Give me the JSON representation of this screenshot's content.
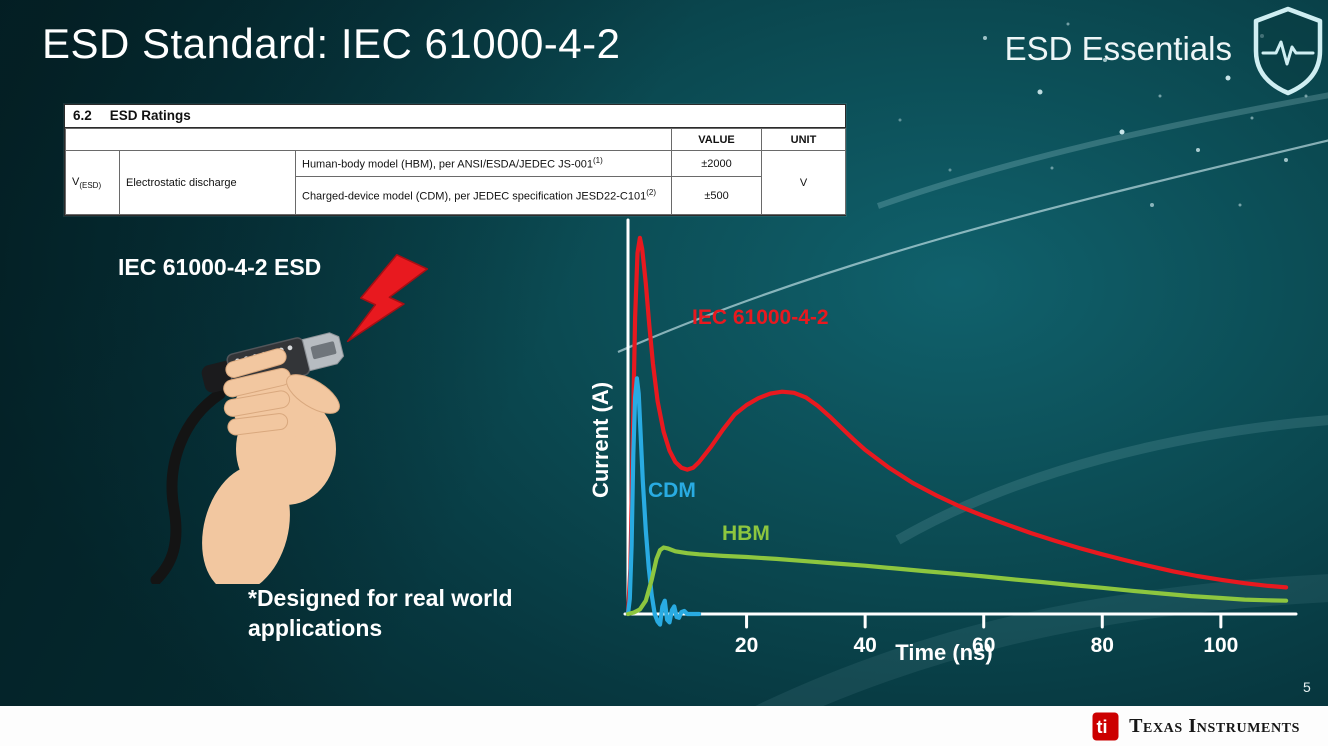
{
  "slide": {
    "title": "ESD Standard: IEC 61000-4-2",
    "brand": "ESD Essentials",
    "page_number": "5"
  },
  "ratings_table": {
    "section_number": "6.2",
    "section_title": "ESD Ratings",
    "headers": {
      "value": "VALUE",
      "unit": "UNIT"
    },
    "param": {
      "symbol": "V",
      "subscript": "(ESD)",
      "name": "Electrostatic discharge"
    },
    "rows": [
      {
        "description": "Human-body model (HBM), per ANSI/ESDA/JEDEC JS-001",
        "footnote": "(1)",
        "value": "±2000"
      },
      {
        "description": "Charged-device model (CDM), per JEDEC specification JESD22-C101",
        "footnote": "(2)",
        "value": "±500"
      }
    ],
    "unit": "V"
  },
  "illustration": {
    "caption": "IEC 61000-4-2 ESD",
    "note_line1": "*Designed for real world",
    "note_line2": "applications"
  },
  "footer": {
    "brand": "Texas Instruments"
  },
  "chart_data": {
    "type": "line",
    "title": "",
    "xlabel": "Time (ns)",
    "ylabel": "Current (A)",
    "xlim": [
      0,
      112
    ],
    "x_ticks": [
      20,
      40,
      60,
      80,
      100
    ],
    "y_axis": "unlabeled; current normalized so IEC 61000-4-2 first peak = 1.0",
    "grid": false,
    "legend": "inline colored labels near each curve",
    "series": [
      {
        "name": "IEC 61000-4-2",
        "color": "#e8191f",
        "points": [
          [
            0,
            0
          ],
          [
            0.4,
            0.12
          ],
          [
            0.8,
            0.45
          ],
          [
            1.2,
            0.78
          ],
          [
            1.6,
            0.95
          ],
          [
            2,
            0.99
          ],
          [
            2.4,
            0.96
          ],
          [
            3,
            0.87
          ],
          [
            3.6,
            0.76
          ],
          [
            4.2,
            0.66
          ],
          [
            5,
            0.56
          ],
          [
            6,
            0.48
          ],
          [
            7,
            0.43
          ],
          [
            8,
            0.4
          ],
          [
            9,
            0.385
          ],
          [
            10,
            0.38
          ],
          [
            11,
            0.385
          ],
          [
            12,
            0.4
          ],
          [
            14,
            0.44
          ],
          [
            16,
            0.485
          ],
          [
            18,
            0.525
          ],
          [
            20,
            0.55
          ],
          [
            22,
            0.568
          ],
          [
            24,
            0.58
          ],
          [
            26,
            0.585
          ],
          [
            28,
            0.582
          ],
          [
            30,
            0.57
          ],
          [
            32,
            0.548
          ],
          [
            34,
            0.52
          ],
          [
            36,
            0.49
          ],
          [
            38,
            0.46
          ],
          [
            40,
            0.432
          ],
          [
            44,
            0.385
          ],
          [
            48,
            0.345
          ],
          [
            52,
            0.312
          ],
          [
            56,
            0.283
          ],
          [
            60,
            0.258
          ],
          [
            64,
            0.235
          ],
          [
            68,
            0.213
          ],
          [
            72,
            0.193
          ],
          [
            76,
            0.174
          ],
          [
            80,
            0.157
          ],
          [
            84,
            0.141
          ],
          [
            88,
            0.126
          ],
          [
            92,
            0.112
          ],
          [
            96,
            0.1
          ],
          [
            100,
            0.09
          ],
          [
            104,
            0.081
          ],
          [
            108,
            0.074
          ],
          [
            111,
            0.07
          ]
        ]
      },
      {
        "name": "CDM",
        "color": "#29abe2",
        "points": [
          [
            0,
            0
          ],
          [
            0.3,
            0.04
          ],
          [
            0.6,
            0.18
          ],
          [
            0.9,
            0.42
          ],
          [
            1.2,
            0.57
          ],
          [
            1.5,
            0.62
          ],
          [
            1.8,
            0.58
          ],
          [
            2.1,
            0.48
          ],
          [
            2.5,
            0.35
          ],
          [
            3,
            0.22
          ],
          [
            3.5,
            0.12
          ],
          [
            4,
            0.05
          ],
          [
            4.5,
            0
          ],
          [
            5,
            -0.02
          ],
          [
            5.4,
            -0.028
          ],
          [
            5.8,
            0.02
          ],
          [
            6.2,
            0.035
          ],
          [
            6.6,
            -0.015
          ],
          [
            7,
            -0.022
          ],
          [
            7.4,
            0.01
          ],
          [
            7.8,
            0.02
          ],
          [
            8.2,
            -0.008
          ],
          [
            8.6,
            -0.01
          ],
          [
            9,
            0.005
          ],
          [
            9.5,
            0.008
          ],
          [
            10,
            0
          ],
          [
            11,
            0
          ],
          [
            12,
            0
          ]
        ]
      },
      {
        "name": "HBM",
        "color": "#8dc63f",
        "points": [
          [
            0,
            0
          ],
          [
            1,
            0.004
          ],
          [
            2,
            0.012
          ],
          [
            3,
            0.035
          ],
          [
            4,
            0.09
          ],
          [
            4.8,
            0.145
          ],
          [
            5.4,
            0.168
          ],
          [
            6,
            0.175
          ],
          [
            6.8,
            0.172
          ],
          [
            8,
            0.165
          ],
          [
            10,
            0.16
          ],
          [
            12,
            0.157
          ],
          [
            16,
            0.153
          ],
          [
            20,
            0.15
          ],
          [
            25,
            0.145
          ],
          [
            30,
            0.139
          ],
          [
            35,
            0.133
          ],
          [
            40,
            0.127
          ],
          [
            45,
            0.12
          ],
          [
            50,
            0.113
          ],
          [
            55,
            0.106
          ],
          [
            60,
            0.099
          ],
          [
            65,
            0.091
          ],
          [
            70,
            0.084
          ],
          [
            75,
            0.076
          ],
          [
            80,
            0.069
          ],
          [
            85,
            0.061
          ],
          [
            90,
            0.054
          ],
          [
            95,
            0.047
          ],
          [
            100,
            0.042
          ],
          [
            104,
            0.038
          ],
          [
            108,
            0.036
          ],
          [
            111,
            0.035
          ]
        ]
      }
    ]
  }
}
